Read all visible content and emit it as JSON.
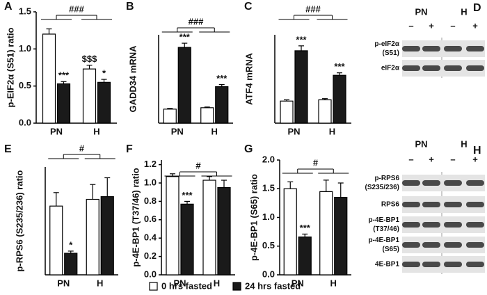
{
  "legend": [
    {
      "name": "0 hrs fasted",
      "color": "#ffffff"
    },
    {
      "name": "24 hrs fasted",
      "color": "#1a1a1a"
    }
  ],
  "chart_data": [
    {
      "type": "bar",
      "panel": "A",
      "ylabel": "p-EIF2α (S51) ratio",
      "categories": [
        "PN",
        "H"
      ],
      "series": [
        {
          "color": "#ffffff",
          "values": [
            1.2,
            0.73
          ],
          "errors": [
            0.07,
            0.05
          ],
          "sig": [
            null,
            "$$$"
          ]
        },
        {
          "color": "#1a1a1a",
          "values": [
            0.53,
            0.55
          ],
          "errors": [
            0.03,
            0.04
          ],
          "sig": [
            "***",
            "*"
          ]
        }
      ],
      "ylim": [
        0,
        1.5
      ],
      "yticks": [
        {
          "value": 0,
          "label": "0.0"
        },
        0.5,
        {
          "value": 1,
          "label": "1.0"
        },
        1.5
      ],
      "bracket": "###"
    },
    {
      "type": "bar",
      "panel": "B",
      "ylabel": "GADD34 mRNA",
      "categories": [
        "PN",
        "H"
      ],
      "series": [
        {
          "color": "#ffffff",
          "values": [
            1.0,
            1.1
          ],
          "errors": [
            0.05,
            0.05
          ],
          "sig": [
            null,
            null
          ]
        },
        {
          "color": "#1a1a1a",
          "values": [
            5.4,
            2.6
          ],
          "errors": [
            0.3,
            0.15
          ],
          "sig": [
            "***",
            "***"
          ]
        }
      ],
      "ylim": [
        0,
        6.3
      ],
      "bracket": "###"
    },
    {
      "type": "bar",
      "panel": "C",
      "ylabel": "ATF4 mRNA",
      "categories": [
        "PN",
        "H"
      ],
      "series": [
        {
          "color": "#ffffff",
          "values": [
            0.9,
            0.95
          ],
          "errors": [
            0.05,
            0.05
          ],
          "sig": [
            null,
            null
          ]
        },
        {
          "color": "#1a1a1a",
          "values": [
            2.95,
            1.95
          ],
          "errors": [
            0.2,
            0.1
          ],
          "sig": [
            "***",
            "***"
          ]
        }
      ],
      "ylim": [
        0,
        3.6
      ],
      "bracket": "###"
    },
    {
      "type": "bar",
      "panel": "E",
      "ylabel": "p-RPS6 (S235/236) ratio",
      "categories": [
        "PN",
        "H"
      ],
      "series": [
        {
          "color": "#ffffff",
          "values": [
            2.55,
            2.8
          ],
          "errors": [
            0.5,
            0.55
          ],
          "sig": [
            null,
            null
          ]
        },
        {
          "color": "#1a1a1a",
          "values": [
            0.8,
            2.9
          ],
          "errors": [
            0.08,
            0.7
          ],
          "sig": [
            "*",
            null
          ]
        }
      ],
      "ylim": [
        0,
        4
      ],
      "bracket": "#"
    },
    {
      "type": "bar",
      "panel": "F",
      "ylabel": "p-4E-BP1 (T37/46) ratio",
      "categories": [
        "PN",
        "H"
      ],
      "series": [
        {
          "color": "#ffffff",
          "values": [
            1.07,
            1.03
          ],
          "errors": [
            0.03,
            0.04
          ],
          "sig": [
            null,
            null
          ]
        },
        {
          "color": "#1a1a1a",
          "values": [
            0.77,
            0.95
          ],
          "errors": [
            0.03,
            0.08
          ],
          "sig": [
            "***",
            null
          ]
        }
      ],
      "ylim": [
        0,
        1.25
      ],
      "yticks": [
        {
          "value": 0,
          "label": "0.0"
        },
        0.2,
        0.4,
        0.6,
        0.8,
        {
          "value": 1,
          "label": "1.0"
        },
        1.2
      ],
      "bracket": "#"
    },
    {
      "type": "bar",
      "panel": "G",
      "ylabel": "p-4E-BP1 (S65) ratio",
      "categories": [
        "PN",
        "H"
      ],
      "series": [
        {
          "color": "#ffffff",
          "values": [
            1.5,
            1.45
          ],
          "errors": [
            0.12,
            0.2
          ],
          "sig": [
            null,
            null
          ]
        },
        {
          "color": "#1a1a1a",
          "values": [
            0.66,
            1.35
          ],
          "errors": [
            0.05,
            0.25
          ],
          "sig": [
            "***",
            null
          ]
        }
      ],
      "ylim": [
        0,
        2
      ],
      "yticks": [
        {
          "value": 0,
          "label": "0.0"
        },
        0.5,
        {
          "value": 1,
          "label": "1.0"
        },
        1.5,
        {
          "value": 2,
          "label": "2.0"
        }
      ],
      "bracket": "#"
    }
  ],
  "blots": [
    {
      "panel": "D",
      "groups": [
        "PN",
        "H"
      ],
      "lanes": [
        "–",
        "+",
        "–",
        "+"
      ],
      "rows": [
        [
          "p-eIF2α",
          "(S51)"
        ],
        [
          "eIF2α"
        ]
      ]
    },
    {
      "panel": "H",
      "groups": [
        "PN",
        "H"
      ],
      "lanes": [
        "–",
        "+",
        "–",
        "+"
      ],
      "rows": [
        [
          "p-RPS6",
          "(S235/236)"
        ],
        [
          "RPS6"
        ],
        [
          "p-4E-BP1",
          "(T37/46)"
        ],
        [
          "p-4E-BP1",
          "(S65)"
        ],
        [
          "4E-BP1"
        ]
      ]
    }
  ]
}
